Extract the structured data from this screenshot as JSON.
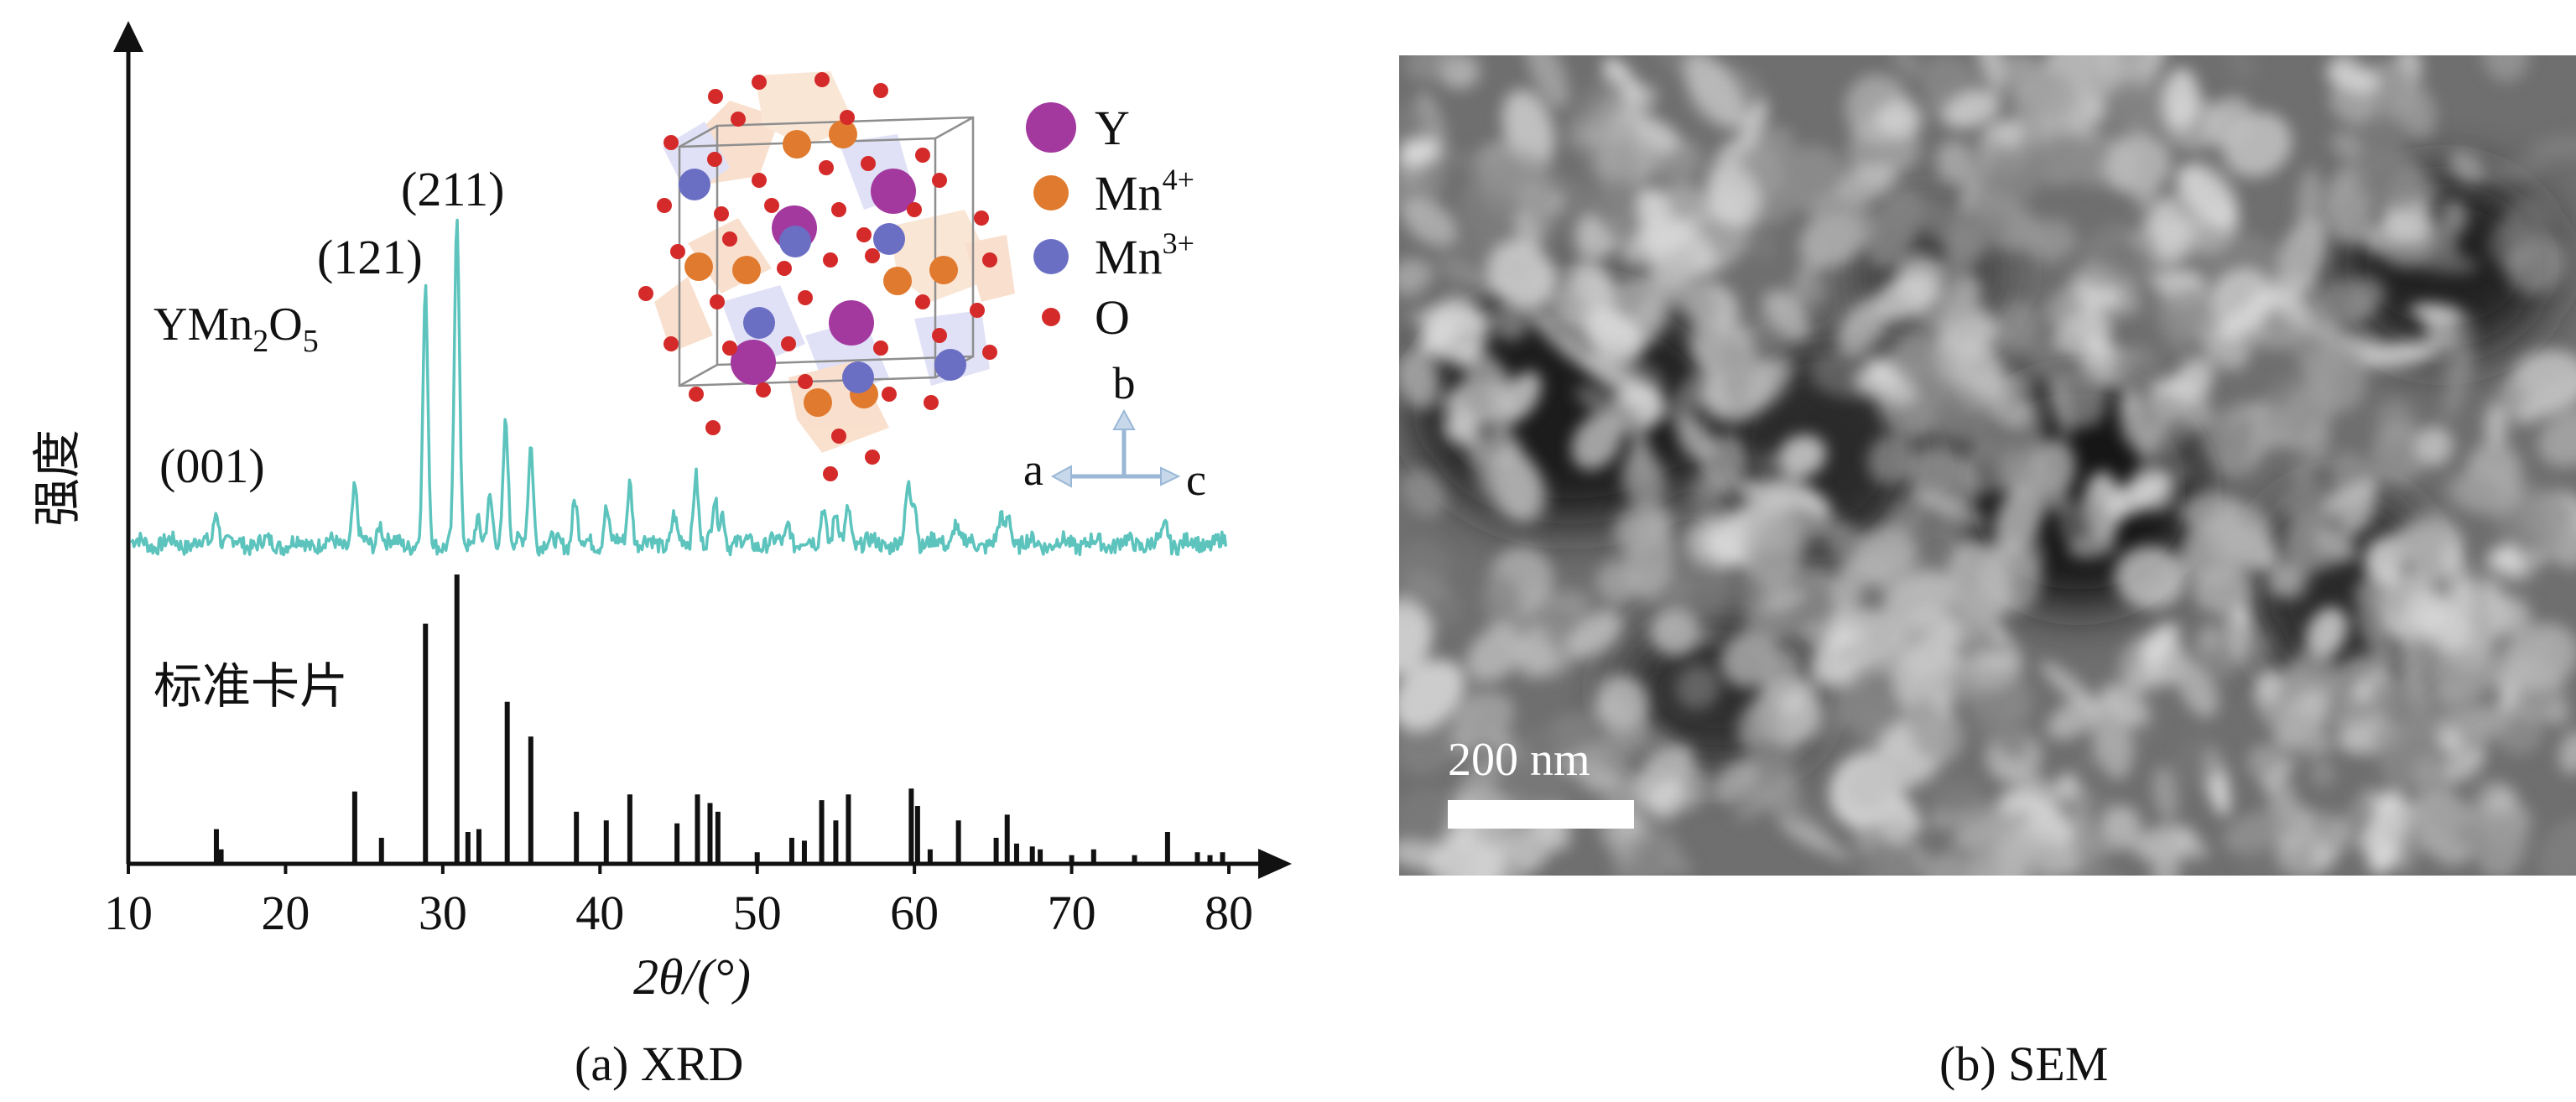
{
  "colors": {
    "measured": "#5cc3bd",
    "reference": "#111111",
    "atom_Y": "#a3399f",
    "atom_Mn4": "#e07a2e",
    "atom_Mn3": "#6b6fc4",
    "atom_O": "#d42a2a"
  },
  "xrd": {
    "caption": "(a) XRD",
    "ylabel": "强度",
    "xlabel": "2θ/(°)",
    "sample_label_main": "YMn",
    "sample_label_sub1": "2",
    "sample_label_mid": "O",
    "sample_label_sub2": "5",
    "reference_label": "标准卡片",
    "peak_labels": [
      "(001)",
      "(121)",
      "(211)"
    ],
    "legend": {
      "Y": "Y",
      "Mn4_base": "Mn",
      "Mn4_sup": "4+",
      "Mn3_base": "Mn",
      "Mn3_sup": "3+",
      "O": "O"
    },
    "axes_labels": {
      "a": "a",
      "b": "b",
      "c": "c"
    }
  },
  "chart_data": {
    "type": "line",
    "xlabel": "2θ/(°)",
    "ylabel": "强度",
    "xlim": [
      10,
      80
    ],
    "xticks": [
      10,
      20,
      30,
      40,
      50,
      60,
      70,
      80
    ],
    "grid": false,
    "series": [
      {
        "name": "YMn2O5",
        "peaks": [
          [
            15.6,
            0.08
          ],
          [
            24.4,
            0.12
          ],
          [
            26.0,
            0.05
          ],
          [
            28.9,
            0.55
          ],
          [
            30.9,
            0.72
          ],
          [
            32.2,
            0.06
          ],
          [
            33.0,
            0.09
          ],
          [
            34.0,
            0.28
          ],
          [
            35.6,
            0.22
          ],
          [
            38.4,
            0.1
          ],
          [
            40.4,
            0.08
          ],
          [
            41.9,
            0.14
          ],
          [
            44.7,
            0.06
          ],
          [
            46.1,
            0.16
          ],
          [
            47.3,
            0.09
          ],
          [
            47.8,
            0.07
          ],
          [
            52.0,
            0.05
          ],
          [
            54.2,
            0.09
          ],
          [
            55.0,
            0.06
          ],
          [
            55.8,
            0.08
          ],
          [
            59.6,
            0.12
          ],
          [
            60.0,
            0.1
          ],
          [
            62.6,
            0.05
          ],
          [
            65.5,
            0.05
          ],
          [
            66.0,
            0.07
          ],
          [
            76.0,
            0.04
          ]
        ]
      },
      {
        "name": "标准卡片",
        "sticks": [
          [
            15.6,
            0.12
          ],
          [
            15.9,
            0.05
          ],
          [
            24.4,
            0.25
          ],
          [
            26.1,
            0.09
          ],
          [
            28.9,
            0.83
          ],
          [
            30.9,
            1.0
          ],
          [
            31.6,
            0.11
          ],
          [
            32.3,
            0.12
          ],
          [
            34.1,
            0.56
          ],
          [
            35.6,
            0.44
          ],
          [
            38.5,
            0.18
          ],
          [
            40.4,
            0.15
          ],
          [
            41.9,
            0.24
          ],
          [
            44.9,
            0.14
          ],
          [
            46.2,
            0.24
          ],
          [
            47.0,
            0.21
          ],
          [
            47.5,
            0.18
          ],
          [
            50.0,
            0.04
          ],
          [
            52.2,
            0.09
          ],
          [
            53.0,
            0.08
          ],
          [
            54.1,
            0.22
          ],
          [
            55.0,
            0.15
          ],
          [
            55.8,
            0.24
          ],
          [
            59.8,
            0.26
          ],
          [
            60.2,
            0.2
          ],
          [
            61.0,
            0.05
          ],
          [
            62.8,
            0.15
          ],
          [
            65.2,
            0.09
          ],
          [
            65.9,
            0.17
          ],
          [
            66.5,
            0.07
          ],
          [
            67.5,
            0.06
          ],
          [
            68.0,
            0.05
          ],
          [
            70.0,
            0.03
          ],
          [
            71.4,
            0.05
          ],
          [
            74.0,
            0.03
          ],
          [
            76.1,
            0.11
          ],
          [
            78.0,
            0.04
          ],
          [
            78.8,
            0.03
          ],
          [
            79.6,
            0.04
          ]
        ]
      }
    ]
  },
  "sem": {
    "caption": "(b) SEM",
    "scale_label": "200 nm"
  }
}
